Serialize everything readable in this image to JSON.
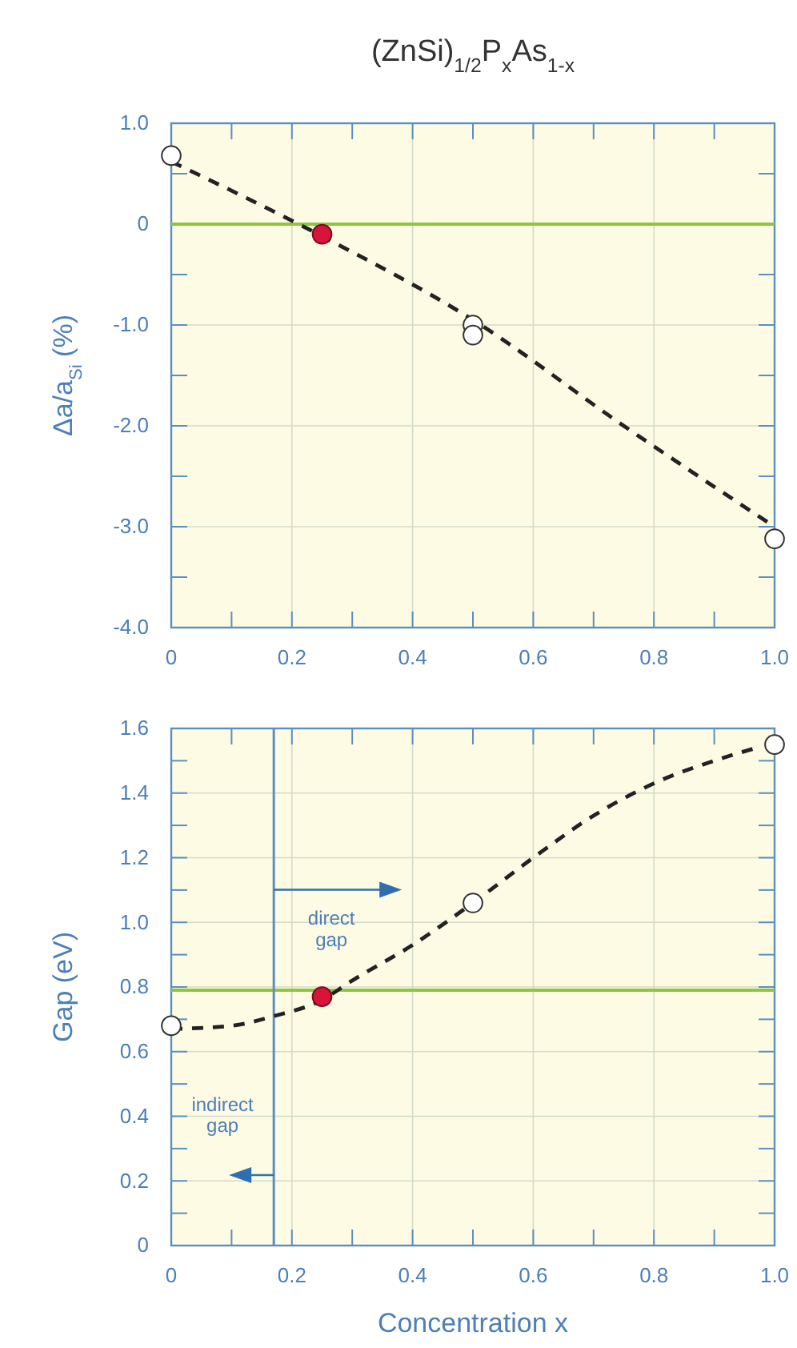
{
  "chart_data": [
    {
      "type": "scatter",
      "title": "(ZnSi)$_{1/2}$P$_{x}$As$_{1-x}$",
      "ylabel": "Δa/a$_{Si}$ (%)",
      "xlim": [
        0,
        1
      ],
      "ylim": [
        -4,
        1
      ],
      "xticks": [
        {
          "value": 0,
          "label": "0"
        },
        {
          "value": 0.1,
          "label": null
        },
        {
          "value": 0.2,
          "label": "0.2"
        },
        {
          "value": 0.3,
          "label": null
        },
        {
          "value": 0.4,
          "label": "0.4"
        },
        {
          "value": 0.5,
          "label": null
        },
        {
          "value": 0.6,
          "label": "0.6"
        },
        {
          "value": 0.7,
          "label": null
        },
        {
          "value": 0.8,
          "label": "0.8"
        },
        {
          "value": 0.9,
          "label": null
        },
        {
          "value": 1,
          "label": "1.0"
        }
      ],
      "yticks": [
        {
          "value": -4,
          "label": "-4.0"
        },
        {
          "value": -3.5,
          "label": null
        },
        {
          "value": -3,
          "label": "-3.0"
        },
        {
          "value": -2.5,
          "label": null
        },
        {
          "value": -2,
          "label": "-2.0"
        },
        {
          "value": -1.5,
          "label": null
        },
        {
          "value": -1,
          "label": "-1.0"
        },
        {
          "value": -0.5,
          "label": null
        },
        {
          "value": 0,
          "label": "0"
        },
        {
          "value": 0.5,
          "label": null
        },
        {
          "value": 1,
          "label": "1.0"
        }
      ],
      "grid": true,
      "marker": "circle",
      "ref_lines": [
        {
          "axis": "y",
          "value": 0,
          "color": "#8cc63f"
        }
      ],
      "series": [
        {
          "type": "line",
          "color": "#222222",
          "line_style": "dashed",
          "marker": "none",
          "x": [
            0,
            0.25,
            0.5,
            0.75,
            1
          ],
          "values": [
            0.62,
            -0.12,
            -0.95,
            -2.0,
            -3.0
          ]
        },
        {
          "color": "#ffffff",
          "x": [
            0,
            0.5,
            0.5,
            1
          ],
          "values": [
            0.68,
            -1.0,
            -1.1,
            -3.12
          ]
        },
        {
          "color": "#d8143a",
          "x": [
            0.25
          ],
          "values": [
            -0.1
          ]
        }
      ]
    },
    {
      "type": "scatter",
      "xlabel": "Concentration x",
      "ylabel": "Gap  (eV)",
      "xlim": [
        0,
        1
      ],
      "ylim": [
        0,
        1.6
      ],
      "xticks": [
        {
          "value": 0,
          "label": "0"
        },
        {
          "value": 0.1,
          "label": null
        },
        {
          "value": 0.2,
          "label": "0.2"
        },
        {
          "value": 0.3,
          "label": null
        },
        {
          "value": 0.4,
          "label": "0.4"
        },
        {
          "value": 0.5,
          "label": null
        },
        {
          "value": 0.6,
          "label": "0.6"
        },
        {
          "value": 0.7,
          "label": null
        },
        {
          "value": 0.8,
          "label": "0.8"
        },
        {
          "value": 0.9,
          "label": null
        },
        {
          "value": 1,
          "label": "1.0"
        }
      ],
      "yticks": [
        {
          "value": 0,
          "label": "0"
        },
        {
          "value": 0.1,
          "label": null
        },
        {
          "value": 0.2,
          "label": "0.2"
        },
        {
          "value": 0.3,
          "label": null
        },
        {
          "value": 0.4,
          "label": "0.4"
        },
        {
          "value": 0.5,
          "label": null
        },
        {
          "value": 0.6,
          "label": "0.6"
        },
        {
          "value": 0.7,
          "label": null
        },
        {
          "value": 0.8,
          "label": "0.8"
        },
        {
          "value": 0.9,
          "label": null
        },
        {
          "value": 1,
          "label": "1.0"
        },
        {
          "value": 1.1,
          "label": null
        },
        {
          "value": 1.2,
          "label": "1.2"
        },
        {
          "value": 1.3,
          "label": null
        },
        {
          "value": 1.4,
          "label": "1.4"
        },
        {
          "value": 1.5,
          "label": null
        },
        {
          "value": 1.6,
          "label": "1.6"
        }
      ],
      "grid": true,
      "marker": "circle",
      "ref_lines": [
        {
          "axis": "y",
          "value": 0.79,
          "color": "#8cc63f"
        },
        {
          "axis": "x",
          "value": 0.17,
          "color": "#5b8fc0"
        }
      ],
      "annotations": [
        "direct gap",
        "indirect gap"
      ],
      "series": [
        {
          "type": "line",
          "color": "#222222",
          "line_style": "dashed",
          "marker": "none",
          "x": [
            0,
            0.1,
            0.17,
            0.25,
            0.3,
            0.4,
            0.5,
            0.6,
            0.7,
            0.8,
            0.9,
            0.97
          ],
          "values": [
            0.67,
            0.68,
            0.71,
            0.76,
            0.82,
            0.93,
            1.06,
            1.2,
            1.33,
            1.43,
            1.5,
            1.54
          ]
        },
        {
          "color": "#ffffff",
          "x": [
            0,
            0.5,
            1
          ],
          "values": [
            0.68,
            1.06,
            1.55
          ]
        },
        {
          "color": "#d8143a",
          "x": [
            0.25
          ],
          "values": [
            0.77
          ]
        }
      ]
    }
  ]
}
